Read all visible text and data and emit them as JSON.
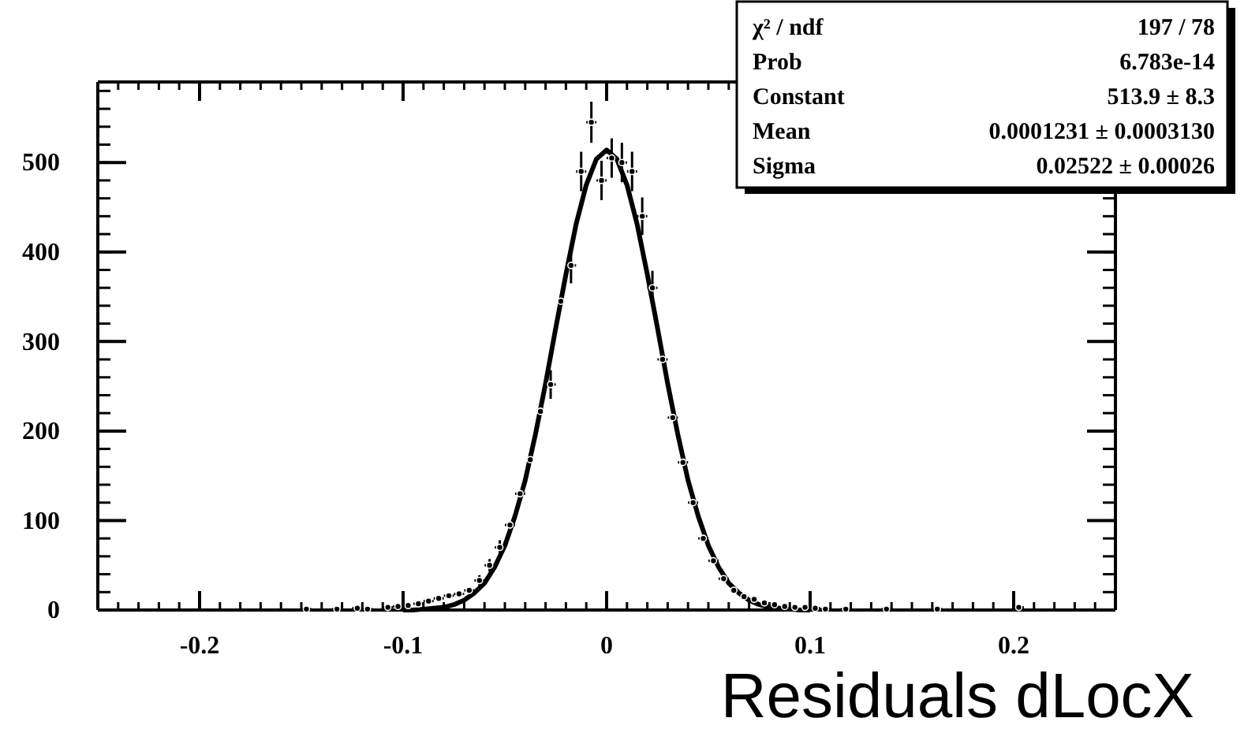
{
  "chart_data": {
    "type": "scatter",
    "xlabel": "Residuals dLocX",
    "xlim": [
      -0.25,
      0.25
    ],
    "xticks": [
      -0.2,
      -0.1,
      {
        "value": 0,
        "label": "0"
      },
      0.1,
      0.2
    ],
    "ylim": [
      0,
      590
    ],
    "yticks": [
      0,
      100,
      200,
      300,
      400,
      500
    ],
    "grid": false,
    "annotations": [
      "χ² / ndf",
      "197 / 78",
      "Prob",
      "6.783e-14",
      "Constant",
      "513.9 ± 8.3",
      "Mean",
      "0.0001231 ± 0.0003130",
      "Sigma",
      "0.02522 ± 0.00026"
    ],
    "series": [
      {
        "color": "#000000",
        "x": [
          -0.1475,
          -0.1325,
          -0.1225,
          -0.1175,
          -0.1075,
          -0.1025,
          -0.0975,
          -0.0925,
          -0.0875,
          -0.0825,
          -0.0775,
          -0.0725,
          -0.0675,
          -0.0625,
          -0.0575,
          -0.0525,
          -0.0475,
          -0.0425,
          -0.0375,
          -0.0325,
          -0.0275,
          -0.0225,
          -0.0175,
          -0.0125,
          -0.0075,
          -0.0025,
          0.0025,
          0.0075,
          0.0125,
          0.0175,
          0.0225,
          0.0275,
          0.0325,
          0.0375,
          0.0425,
          0.0475,
          0.0525,
          0.0575,
          0.0625,
          0.0675,
          0.0725,
          0.0775,
          0.0825,
          0.0875,
          0.0925,
          0.0975,
          0.1025,
          0.1075,
          0.1175,
          0.1375,
          0.1625,
          0.2025
        ],
        "values": [
          1,
          1,
          2,
          1,
          3,
          4,
          5,
          7,
          10,
          13,
          16,
          18,
          22,
          33,
          50,
          70,
          95,
          130,
          168,
          222,
          252,
          345,
          385,
          490,
          545,
          480,
          505,
          500,
          490,
          440,
          360,
          280,
          215,
          165,
          120,
          80,
          55,
          35,
          22,
          15,
          12,
          8,
          6,
          4,
          3,
          3,
          2,
          1,
          1,
          1,
          1,
          3
        ],
        "errors": [
          null,
          null,
          null,
          null,
          null,
          null,
          null,
          null,
          null,
          null,
          null,
          null,
          null,
          6,
          7,
          8,
          null,
          null,
          null,
          null,
          16,
          null,
          20,
          22,
          23,
          22,
          22,
          22,
          22,
          21,
          19,
          null,
          null,
          null,
          null,
          null,
          null,
          null,
          null,
          null,
          null,
          null,
          null,
          null,
          null,
          null,
          null,
          null,
          null,
          null,
          null,
          null
        ],
        "xerrors": [
          0.0025,
          0.0025,
          0.0025,
          0.0025,
          0.0025,
          0.0025,
          null,
          0.0025,
          0.0025,
          0.0025,
          0.0025,
          0.0025,
          0.0025,
          0.0025,
          0.0025,
          0.0025,
          0.0025,
          0.0025,
          null,
          null,
          0.0025,
          null,
          0.0025,
          0.0025,
          0.0025,
          0.0025,
          0.0025,
          0.0025,
          0.0025,
          0.0025,
          0.0025,
          0.0025,
          0.0025,
          0.0025,
          0.0025,
          0.0025,
          0.0025,
          0.0025,
          null,
          null,
          null,
          null,
          null,
          null,
          null,
          null,
          0.0025,
          0.0025,
          0.0025,
          0.0025,
          0.0025,
          0.0025
        ]
      },
      {
        "type": "line",
        "line_style": "solid",
        "color": "#000000",
        "x": [
          -0.1,
          -0.095,
          -0.09,
          -0.085,
          -0.08,
          -0.075,
          -0.07,
          -0.065,
          -0.06,
          -0.055,
          -0.05,
          -0.045,
          -0.04,
          -0.035,
          -0.03,
          -0.025,
          -0.02,
          -0.015,
          -0.01,
          -0.005,
          0,
          0.005,
          0.01,
          0.015,
          0.02,
          0.025,
          0.03,
          0.035,
          0.04,
          0.045,
          0.05,
          0.055,
          0.06,
          0.065,
          0.07,
          0.075,
          0.08,
          0.085,
          0.09,
          0.095,
          0.1
        ],
        "values": [
          0,
          0,
          1,
          2,
          3,
          6,
          11,
          19,
          30,
          48,
          72,
          105,
          145,
          196,
          253,
          315,
          375,
          431,
          475,
          504,
          514,
          504,
          475,
          431,
          375,
          315,
          253,
          196,
          145,
          105,
          72,
          48,
          30,
          19,
          11,
          6,
          3,
          2,
          1,
          0,
          0
        ]
      }
    ]
  }
}
